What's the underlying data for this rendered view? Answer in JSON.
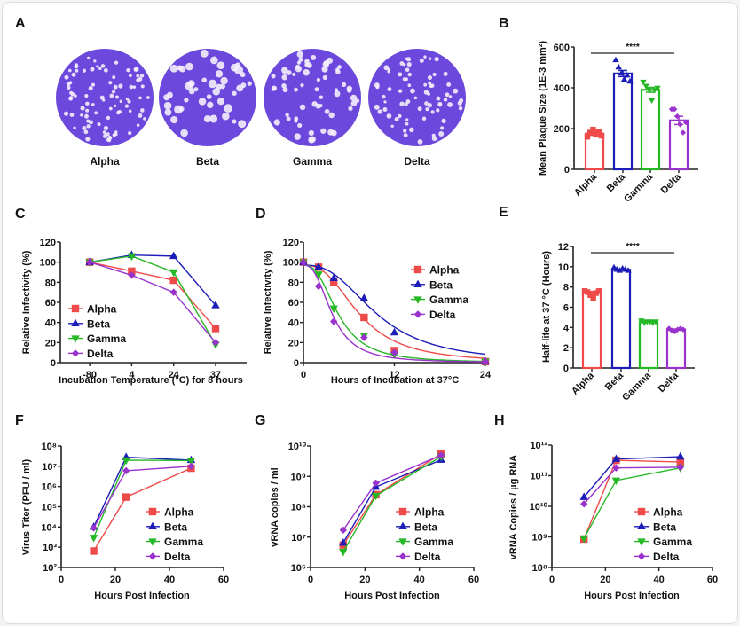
{
  "series_colors": {
    "Alpha": "#ee4a4a",
    "Beta": "#1c1cb8",
    "Gamma": "#25b825",
    "Delta": "#9a32cc"
  },
  "series_markers": {
    "Alpha": "square",
    "Beta": "triangle-up",
    "Gamma": "triangle-down",
    "Delta": "diamond"
  },
  "panel_a": {
    "panel": "A",
    "plates": [
      "Alpha",
      "Beta",
      "Gamma",
      "Delta"
    ],
    "plate_color": "#6c48dc"
  },
  "chart_data": [
    {
      "panel": "B",
      "type": "bar",
      "ylabel": "Mean Plaque Size (1E-3 mm²)",
      "categories": [
        "Alpha",
        "Beta",
        "Gamma",
        "Delta"
      ],
      "values": [
        175,
        470,
        390,
        240
      ],
      "sem": [
        8,
        15,
        12,
        20
      ],
      "points": [
        [
          160,
          180,
          195,
          170,
          185,
          165
        ],
        [
          535,
          500,
          470,
          440,
          460,
          430
        ],
        [
          430,
          410,
          395,
          340,
          390,
          400
        ],
        [
          295,
          295,
          260,
          220,
          180,
          230
        ]
      ],
      "ylim": [
        0,
        600
      ],
      "yticks": [
        0,
        200,
        400,
        600
      ],
      "ytick_labels": [
        "0",
        "200",
        "400",
        "600"
      ],
      "significance": "****"
    },
    {
      "panel": "C",
      "type": "line",
      "xlabel": "Incubation Temperature (°C) for 8 hours",
      "ylabel": "Relative Infectivity (%)",
      "categories": [
        "-80",
        "4",
        "24",
        "37"
      ],
      "series": [
        {
          "name": "Alpha",
          "values": [
            100,
            91,
            82,
            34
          ]
        },
        {
          "name": "Beta",
          "values": [
            100,
            107,
            106,
            57
          ]
        },
        {
          "name": "Gamma",
          "values": [
            100,
            106,
            90,
            18
          ]
        },
        {
          "name": "Delta",
          "values": [
            100,
            87,
            70,
            20
          ]
        }
      ],
      "ylim": [
        0,
        120
      ],
      "yticks": [
        0,
        20,
        40,
        60,
        80,
        100,
        120
      ],
      "ytick_labels": [
        "0",
        "20",
        "40",
        "60",
        "80",
        "100",
        "120"
      ],
      "legend": "left"
    },
    {
      "panel": "D",
      "type": "scatter",
      "xlabel": "Hours of Incubation at 37°C",
      "ylabel": "Relative Infectivity (%)",
      "x": [
        0,
        2,
        4,
        8,
        12,
        24
      ],
      "series": [
        {
          "name": "Alpha",
          "values": [
            100,
            95,
            80,
            45,
            12,
            1
          ]
        },
        {
          "name": "Beta",
          "values": [
            100,
            95,
            84,
            64,
            30,
            1
          ]
        },
        {
          "name": "Gamma",
          "values": [
            100,
            88,
            54,
            27,
            8,
            1
          ]
        },
        {
          "name": "Delta",
          "values": [
            100,
            76,
            41,
            25,
            10,
            1
          ]
        }
      ],
      "fit": "sigmoidal decay curve",
      "xlim": [
        0,
        24
      ],
      "xticks": [
        0,
        12,
        24
      ],
      "xtick_labels": [
        "0",
        "12",
        "24"
      ],
      "ylim": [
        0,
        120
      ],
      "yticks": [
        0,
        20,
        40,
        60,
        80,
        100,
        120
      ],
      "ytick_labels": [
        "0",
        "20",
        "40",
        "60",
        "80",
        "100",
        "120"
      ],
      "legend": "top-right"
    },
    {
      "panel": "E",
      "type": "bar",
      "ylabel": "Half-life at 37 °C (Hours)",
      "categories": [
        "Alpha",
        "Beta",
        "Gamma",
        "Delta"
      ],
      "values": [
        7.4,
        9.7,
        4.6,
        3.8
      ],
      "sem": [
        0.15,
        0.05,
        0.05,
        0.05
      ],
      "points": [
        [
          7.6,
          7.5,
          7.2,
          6.9,
          7.4,
          7.6
        ],
        [
          9.9,
          9.7,
          9.6,
          9.8,
          9.7,
          9.6
        ],
        [
          4.7,
          4.5,
          4.6,
          4.6,
          4.5,
          4.6
        ],
        [
          3.9,
          3.7,
          3.6,
          3.8,
          3.9,
          3.8
        ]
      ],
      "ylim": [
        0,
        12
      ],
      "yticks": [
        0,
        2,
        4,
        6,
        8,
        10,
        12
      ],
      "ytick_labels": [
        "0",
        "2",
        "4",
        "6",
        "8",
        "10",
        "12"
      ],
      "significance": "****"
    },
    {
      "panel": "F",
      "type": "line",
      "xlabel": "Hours Post Infection",
      "ylabel": "Virus Titer (PFU / ml)",
      "x": [
        12,
        24,
        48
      ],
      "series": [
        {
          "name": "Alpha",
          "values": [
            650,
            300000,
            8000000
          ]
        },
        {
          "name": "Beta",
          "values": [
            10000,
            28000000,
            20000000
          ]
        },
        {
          "name": "Gamma",
          "values": [
            3000,
            20000000,
            19000000
          ]
        },
        {
          "name": "Delta",
          "values": [
            9000,
            6000000,
            10000000
          ]
        }
      ],
      "xlim": [
        0,
        60
      ],
      "xticks": [
        0,
        20,
        40,
        60
      ],
      "xtick_labels": [
        "0",
        "20",
        "40",
        "60"
      ],
      "yscale": "log",
      "ylim": [
        100,
        100000000
      ],
      "yticks": [
        100.0,
        1000.0,
        10000.0,
        100000.0,
        1000000.0,
        10000000.0,
        100000000.0
      ],
      "ytick_labels": [
        "10²",
        "10³",
        "10⁴",
        "10⁵",
        "10⁶",
        "10⁷",
        "10⁸"
      ],
      "legend": "bottom-right"
    },
    {
      "panel": "G",
      "type": "line",
      "xlabel": "Hours Post Infection",
      "ylabel": "vRNA copies / ml",
      "x": [
        12,
        24,
        48
      ],
      "series": [
        {
          "name": "Alpha",
          "values": [
            5500000,
            250000000,
            5500000000
          ]
        },
        {
          "name": "Beta",
          "values": [
            6500000,
            450000000,
            3500000000
          ]
        },
        {
          "name": "Gamma",
          "values": [
            3300000,
            230000000,
            4500000000
          ]
        },
        {
          "name": "Delta",
          "values": [
            17000000,
            600000000,
            5000000000
          ]
        }
      ],
      "xlim": [
        0,
        60
      ],
      "xticks": [
        0,
        20,
        40,
        60
      ],
      "xtick_labels": [
        "0",
        "20",
        "40",
        "60"
      ],
      "yscale": "log",
      "ylim": [
        1000000.0,
        10000000000.0
      ],
      "yticks": [
        1000000.0,
        10000000.0,
        100000000.0,
        1000000000.0,
        10000000000.0
      ],
      "ytick_labels": [
        "10⁶",
        "10⁷",
        "10⁸",
        "10⁹",
        "10¹⁰"
      ],
      "legend": "bottom-right"
    },
    {
      "panel": "H",
      "type": "line",
      "xlabel": "Hours Post Infection",
      "ylabel": "vRNA Copies / µg RNA",
      "x": [
        12,
        24,
        48
      ],
      "series": [
        {
          "name": "Alpha",
          "values": [
            850000000,
            320000000000,
            280000000000
          ]
        },
        {
          "name": "Beta",
          "values": [
            20000000000,
            350000000000,
            420000000000
          ]
        },
        {
          "name": "Gamma",
          "values": [
            900000000,
            70000000000,
            180000000000
          ]
        },
        {
          "name": "Delta",
          "values": [
            12000000000,
            180000000000,
            190000000000
          ]
        }
      ],
      "xlim": [
        0,
        60
      ],
      "xticks": [
        0,
        20,
        40,
        60
      ],
      "xtick_labels": [
        "0",
        "20",
        "40",
        "60"
      ],
      "yscale": "log",
      "ylim": [
        100000000.0,
        1000000000000.0
      ],
      "yticks": [
        100000000.0,
        1000000000.0,
        10000000000.0,
        100000000000.0,
        1000000000000.0
      ],
      "ytick_labels": [
        "10⁸",
        "10⁹",
        "10¹⁰",
        "10¹¹",
        "10¹²"
      ],
      "legend": "bottom-right"
    }
  ]
}
